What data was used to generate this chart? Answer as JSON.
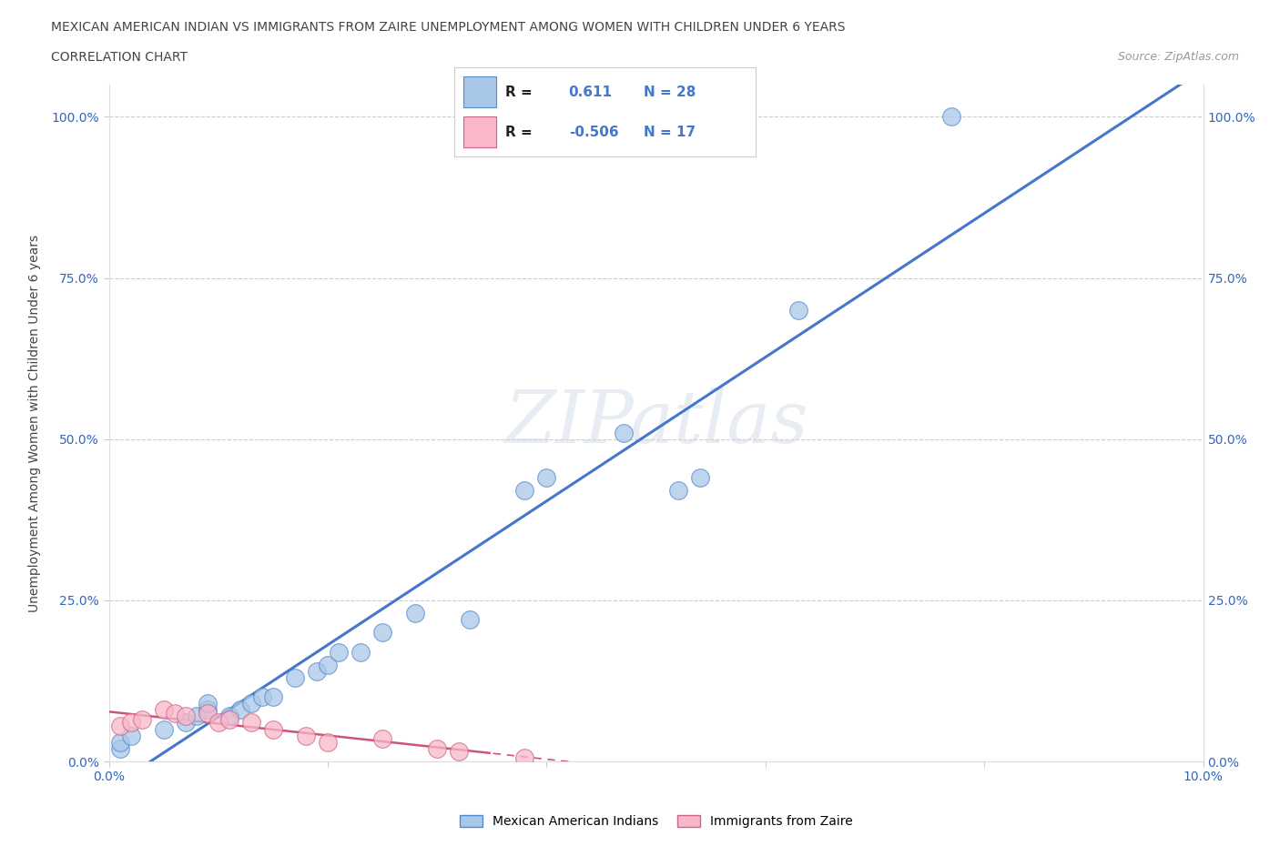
{
  "title_line1": "MEXICAN AMERICAN INDIAN VS IMMIGRANTS FROM ZAIRE UNEMPLOYMENT AMONG WOMEN WITH CHILDREN UNDER 6 YEARS",
  "title_line2": "CORRELATION CHART",
  "source": "Source: ZipAtlas.com",
  "ylabel": "Unemployment Among Women with Children Under 6 years",
  "xlim": [
    0.0,
    0.1
  ],
  "ylim": [
    0.0,
    1.05
  ],
  "x_ticks": [
    0.0,
    0.02,
    0.04,
    0.06,
    0.08,
    0.1
  ],
  "x_tick_labels": [
    "0.0%",
    "",
    "",
    "",
    "",
    "10.0%"
  ],
  "y_ticks": [
    0.0,
    0.25,
    0.5,
    0.75,
    1.0
  ],
  "y_tick_labels": [
    "0.0%",
    "25.0%",
    "50.0%",
    "75.0%",
    "100.0%"
  ],
  "grid_color": "#cccccc",
  "background_color": "#ffffff",
  "watermark": "ZIPatlas",
  "blue_series_label": "Mexican American Indians",
  "blue_color": "#a8c8e8",
  "blue_edge_color": "#5588cc",
  "blue_line_color": "#4477cc",
  "blue_R": 0.611,
  "blue_N": 28,
  "blue_x": [
    0.001,
    0.001,
    0.002,
    0.005,
    0.007,
    0.008,
    0.009,
    0.009,
    0.011,
    0.012,
    0.013,
    0.014,
    0.015,
    0.017,
    0.019,
    0.02,
    0.021,
    0.023,
    0.025,
    0.028,
    0.033,
    0.038,
    0.04,
    0.047,
    0.052,
    0.054,
    0.063,
    0.077
  ],
  "blue_y": [
    0.02,
    0.03,
    0.04,
    0.05,
    0.06,
    0.07,
    0.08,
    0.09,
    0.07,
    0.08,
    0.09,
    0.1,
    0.1,
    0.13,
    0.14,
    0.15,
    0.17,
    0.17,
    0.2,
    0.23,
    0.22,
    0.42,
    0.44,
    0.51,
    0.42,
    0.44,
    0.7,
    1.0
  ],
  "pink_series_label": "Immigrants from Zaire",
  "pink_color": "#f8b8c8",
  "pink_edge_color": "#cc6688",
  "pink_line_color": "#cc5577",
  "pink_R": -0.506,
  "pink_N": 17,
  "pink_x": [
    0.001,
    0.002,
    0.003,
    0.005,
    0.006,
    0.007,
    0.009,
    0.01,
    0.011,
    0.013,
    0.015,
    0.018,
    0.02,
    0.025,
    0.03,
    0.032,
    0.038
  ],
  "pink_y": [
    0.055,
    0.06,
    0.065,
    0.08,
    0.075,
    0.07,
    0.075,
    0.06,
    0.065,
    0.06,
    0.05,
    0.04,
    0.03,
    0.035,
    0.02,
    0.015,
    0.005
  ]
}
